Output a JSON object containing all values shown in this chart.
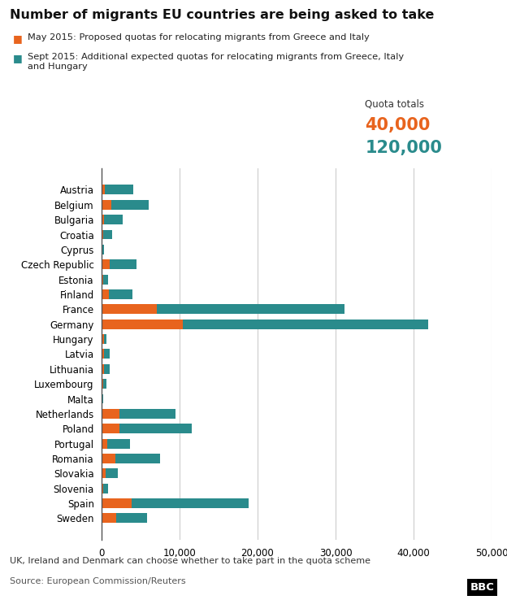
{
  "title": "Number of migrants EU countries are being asked to take",
  "legend1": "May 2015: Proposed quotas for relocating migrants from Greece and Italy",
  "legend2": "Sept 2015: Additional expected quotas for relocating migrants from Greece, Italy\nand Hungary",
  "color_orange": "#E8641E",
  "color_teal": "#2A8B8C",
  "footnote": "UK, Ireland and Denmark can choose whether to take part in the quota scheme",
  "source": "Source: European Commission/Reuters",
  "quota_label": "Quota totals",
  "quota_orange": "40,000",
  "quota_teal": "120,000",
  "countries": [
    "Austria",
    "Belgium",
    "Bulgaria",
    "Croatia",
    "Cyprus",
    "Czech Republic",
    "Estonia",
    "Finland",
    "France",
    "Germany",
    "Hungary",
    "Latvia",
    "Lithuania",
    "Luxembourg",
    "Malta",
    "Netherlands",
    "Poland",
    "Portugal",
    "Romania",
    "Slovakia",
    "Slovenia",
    "Spain",
    "Sweden"
  ],
  "may2015": [
    462,
    1221,
    344,
    269,
    84,
    1021,
    179,
    979,
    7115,
    10443,
    306,
    295,
    325,
    193,
    59,
    2288,
    2301,
    729,
    1785,
    575,
    230,
    3888,
    1894
  ],
  "sept2015": [
    3640,
    4878,
    2395,
    1064,
    274,
    3461,
    626,
    2978,
    24031,
    31443,
    306,
    726,
    780,
    440,
    141,
    7214,
    9287,
    2951,
    5765,
    1502,
    631,
    14931,
    3966
  ],
  "xlim": [
    0,
    50000
  ],
  "xticks": [
    0,
    10000,
    20000,
    30000,
    40000,
    50000
  ],
  "xticklabels": [
    "0",
    "10,000",
    "20,000",
    "30,000",
    "40,000",
    "50,000"
  ],
  "background_color": "#FFFFFF"
}
